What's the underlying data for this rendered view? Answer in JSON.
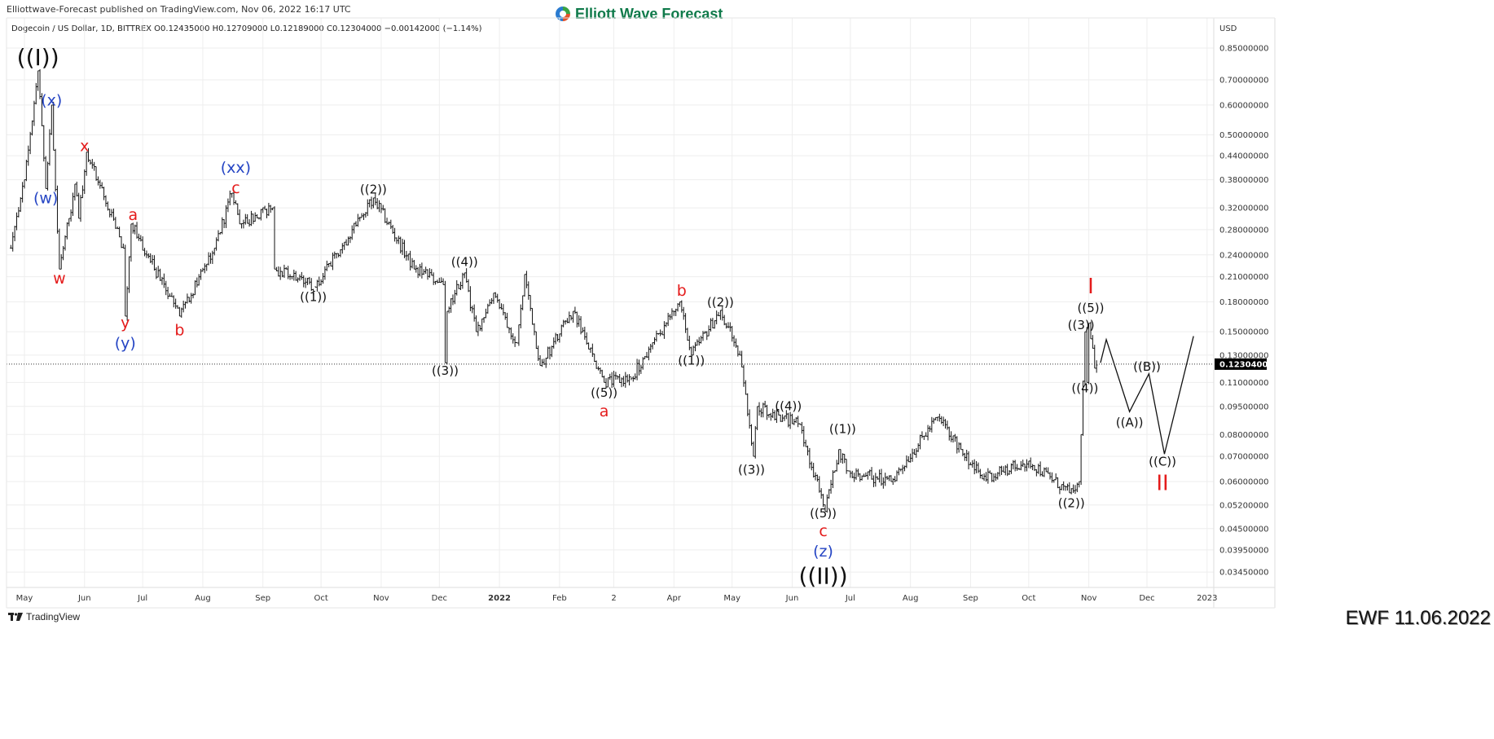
{
  "header": {
    "published": "Elliottwave-Forecast published on TradingView.com, Nov 06, 2022 16:17 UTC",
    "legend": "Dogecoin / US Dollar, 1D, BITTREX  O0.12435000  H0.12709000  L0.12189000  C0.12304000  −0.00142000 (−1.14%)",
    "logo_text": "Elliott Wave Forecast"
  },
  "footer": {
    "tradingview_label": "TradingView",
    "stamp": "EWF 11.06.2022"
  },
  "colors": {
    "black": "#111111",
    "red": "#e41b1b",
    "blue": "#2545c4",
    "grid": "#eeeeee",
    "last_price_bg": "#000000"
  },
  "chart_data": {
    "type": "ohlc",
    "symbol": "Dogecoin / US Dollar",
    "interval": "1D",
    "exchange": "BITTREX",
    "currency_label": "USD",
    "y_scale": "log",
    "ylim": [
      0.0345,
      0.85
    ],
    "grid": true,
    "last_price": 0.12304,
    "last_price_label": "0.12304000",
    "y_ticks": [
      "0.85000000",
      "0.70000000",
      "0.60000000",
      "0.50000000",
      "0.44000000",
      "0.38000000",
      "0.32000000",
      "0.28000000",
      "0.24000000",
      "0.21000000",
      "0.18000000",
      "0.15000000",
      "0.13000000",
      "0.11000000",
      "0.09500000",
      "0.08000000",
      "0.07000000",
      "0.06000000",
      "0.05200000",
      "0.04500000",
      "0.03950000",
      "0.03450000"
    ],
    "x_ticks": [
      {
        "label": "May",
        "date": "2021-05-01"
      },
      {
        "label": "Jun",
        "date": "2021-06-01"
      },
      {
        "label": "Jul",
        "date": "2021-07-01"
      },
      {
        "label": "Aug",
        "date": "2021-08-01"
      },
      {
        "label": "Sep",
        "date": "2021-09-01"
      },
      {
        "label": "Oct",
        "date": "2021-10-01"
      },
      {
        "label": "Nov",
        "date": "2021-11-01"
      },
      {
        "label": "Dec",
        "date": "2021-12-01"
      },
      {
        "label": "2022",
        "date": "2022-01-01"
      },
      {
        "label": "Feb",
        "date": "2022-02-01"
      },
      {
        "label": "2",
        "date": "2022-03-01"
      },
      {
        "label": "Apr",
        "date": "2022-04-01"
      },
      {
        "label": "May",
        "date": "2022-05-01"
      },
      {
        "label": "Jun",
        "date": "2022-06-01"
      },
      {
        "label": "Jul",
        "date": "2022-07-01"
      },
      {
        "label": "Aug",
        "date": "2022-08-01"
      },
      {
        "label": "Sep",
        "date": "2022-09-01"
      },
      {
        "label": "Oct",
        "date": "2022-10-01"
      },
      {
        "label": "Nov",
        "date": "2022-11-01"
      },
      {
        "label": "Dec",
        "date": "2022-12-01"
      },
      {
        "label": "2023",
        "date": "2023-01-01"
      }
    ],
    "price_path_approx": [
      [
        "2021-04-24",
        0.25
      ],
      [
        "2021-05-01",
        0.38
      ],
      [
        "2021-05-08",
        0.74
      ],
      [
        "2021-05-12",
        0.36
      ],
      [
        "2021-05-15",
        0.6
      ],
      [
        "2021-05-19",
        0.22
      ],
      [
        "2021-05-24",
        0.3
      ],
      [
        "2021-05-27",
        0.37
      ],
      [
        "2021-05-29",
        0.3
      ],
      [
        "2021-06-02",
        0.45
      ],
      [
        "2021-06-21",
        0.25
      ],
      [
        "2021-06-22",
        0.165
      ],
      [
        "2021-06-25",
        0.29
      ],
      [
        "2021-07-20",
        0.165
      ],
      [
        "2021-08-07",
        0.25
      ],
      [
        "2021-08-16",
        0.35
      ],
      [
        "2021-08-20",
        0.29
      ],
      [
        "2021-09-06",
        0.32
      ],
      [
        "2021-09-07",
        0.22
      ],
      [
        "2021-09-28",
        0.197
      ],
      [
        "2021-10-28",
        0.34
      ],
      [
        "2021-11-18",
        0.22
      ],
      [
        "2021-12-03",
        0.2
      ],
      [
        "2021-12-04",
        0.124
      ],
      [
        "2021-12-05",
        0.17
      ],
      [
        "2021-12-14",
        0.215
      ],
      [
        "2021-12-20",
        0.15
      ],
      [
        "2021-12-29",
        0.19
      ],
      [
        "2022-01-10",
        0.14
      ],
      [
        "2022-01-14",
        0.213
      ],
      [
        "2022-01-22",
        0.122
      ],
      [
        "2022-02-08",
        0.17
      ],
      [
        "2022-02-24",
        0.11
      ],
      [
        "2022-03-10",
        0.113
      ],
      [
        "2022-04-04",
        0.18
      ],
      [
        "2022-04-10",
        0.13
      ],
      [
        "2022-04-25",
        0.171
      ],
      [
        "2022-05-05",
        0.13
      ],
      [
        "2022-05-12",
        0.07
      ],
      [
        "2022-05-14",
        0.095
      ],
      [
        "2022-06-05",
        0.085
      ],
      [
        "2022-06-18",
        0.05
      ],
      [
        "2022-06-25",
        0.073
      ],
      [
        "2022-06-30",
        0.064
      ],
      [
        "2022-07-22",
        0.06
      ],
      [
        "2022-08-15",
        0.089
      ],
      [
        "2022-09-07",
        0.061
      ],
      [
        "2022-10-01",
        0.068
      ],
      [
        "2022-10-22",
        0.056
      ],
      [
        "2022-10-27",
        0.06
      ],
      [
        "2022-10-28",
        0.08
      ],
      [
        "2022-10-30",
        0.15
      ],
      [
        "2022-10-31",
        0.11
      ],
      [
        "2022-11-01",
        0.158
      ],
      [
        "2022-11-04",
        0.12
      ],
      [
        "2022-11-06",
        0.123
      ]
    ],
    "projection_path": [
      [
        "2022-11-07",
        0.124
      ],
      [
        "2022-11-10",
        0.143
      ],
      [
        "2022-11-22",
        0.092
      ],
      [
        "2022-12-02",
        0.116
      ],
      [
        "2022-12-10",
        0.071
      ],
      [
        "2022-12-25",
        0.146
      ]
    ],
    "wave_labels": [
      {
        "text": "((I))",
        "color": "black",
        "size": "xl",
        "date": "2021-05-08",
        "price": 0.797
      },
      {
        "text": "(x)",
        "color": "blue",
        "size": "m",
        "date": "2021-05-15",
        "price": 0.615
      },
      {
        "text": "(w)",
        "color": "blue",
        "size": "m",
        "date": "2021-05-12",
        "price": 0.338
      },
      {
        "text": "w",
        "color": "red",
        "size": "m",
        "date": "2021-05-19",
        "price": 0.207
      },
      {
        "text": "x",
        "color": "red",
        "size": "m",
        "date": "2021-06-01",
        "price": 0.465
      },
      {
        "text": "(xx)",
        "color": "blue",
        "size": "m",
        "date": "2021-08-18",
        "price": 0.397
      },
      {
        "text": "c",
        "color": "red",
        "size": "m",
        "date": "2021-08-18",
        "price": 0.37
      },
      {
        "text": "a",
        "color": "red",
        "size": "m",
        "date": "2021-06-26",
        "price": 0.305
      },
      {
        "text": "y",
        "color": "red",
        "size": "m",
        "date": "2021-06-22",
        "price": 0.155
      },
      {
        "text": "(y)",
        "color": "blue",
        "size": "m",
        "date": "2021-06-22",
        "price": 0.142
      },
      {
        "text": "b",
        "color": "red",
        "size": "m",
        "date": "2021-07-20",
        "price": 0.151
      },
      {
        "text": "((1))",
        "color": "black",
        "size": "s",
        "date": "2021-09-27",
        "price": 0.185
      },
      {
        "text": "((2))",
        "color": "black",
        "size": "s",
        "date": "2021-10-28",
        "price": 0.357
      },
      {
        "text": "((4))",
        "color": "black",
        "size": "s",
        "date": "2021-12-14",
        "price": 0.229
      },
      {
        "text": "((3))",
        "color": "black",
        "size": "s",
        "date": "2021-12-04",
        "price": 0.118
      },
      {
        "text": "((5))",
        "color": "black",
        "size": "s",
        "date": "2022-02-24",
        "price": 0.102
      },
      {
        "text": "a",
        "color": "red",
        "size": "m",
        "date": "2022-02-24",
        "price": 0.093
      },
      {
        "text": "b",
        "color": "red",
        "size": "m",
        "date": "2022-04-05",
        "price": 0.192
      },
      {
        "text": "((1))",
        "color": "black",
        "size": "s",
        "date": "2022-04-10",
        "price": 0.1255
      },
      {
        "text": "((2))",
        "color": "black",
        "size": "s",
        "date": "2022-04-25",
        "price": 0.179
      },
      {
        "text": "((3))",
        "color": "black",
        "size": "s",
        "date": "2022-05-11",
        "price": 0.0644
      },
      {
        "text": "((4))",
        "color": "black",
        "size": "s",
        "date": "2022-05-30",
        "price": 0.095
      },
      {
        "text": "((1))",
        "color": "black",
        "size": "s",
        "date": "2022-06-27",
        "price": 0.0826
      },
      {
        "text": "((5))",
        "color": "black",
        "size": "s",
        "date": "2022-06-17",
        "price": 0.0468
      },
      {
        "text": "c",
        "color": "red",
        "size": "m",
        "date": "2022-06-17",
        "price": 0.0432
      },
      {
        "text": "(z)",
        "color": "blue",
        "size": "m",
        "date": "2022-06-17",
        "price": 0.0393
      },
      {
        "text": "((II))",
        "color": "black",
        "size": "xl",
        "date": "2022-06-17",
        "price": 0.0357
      },
      {
        "text": "((2))",
        "color": "black",
        "size": "s",
        "date": "2022-10-23",
        "price": 0.0524
      },
      {
        "text": "I",
        "color": "red",
        "size": "l",
        "date": "2022-11-02",
        "price": 0.1926
      },
      {
        "text": "((5))",
        "color": "black",
        "size": "s",
        "date": "2022-11-02",
        "price": 0.1735
      },
      {
        "text": "((3))",
        "color": "black",
        "size": "s",
        "date": "2022-10-28",
        "price": 0.1586
      },
      {
        "text": "((4))",
        "color": "black",
        "size": "s",
        "date": "2022-10-30",
        "price": 0.106
      },
      {
        "text": "((B))",
        "color": "black",
        "size": "s",
        "date": "2022-12-01",
        "price": 0.121
      },
      {
        "text": "((A))",
        "color": "black",
        "size": "s",
        "date": "2022-11-22",
        "price": 0.0859
      },
      {
        "text": "((C))",
        "color": "black",
        "size": "s",
        "date": "2022-12-09",
        "price": 0.0666
      },
      {
        "text": "II",
        "color": "red",
        "size": "l",
        "date": "2022-12-09",
        "price": 0.06
      }
    ]
  }
}
